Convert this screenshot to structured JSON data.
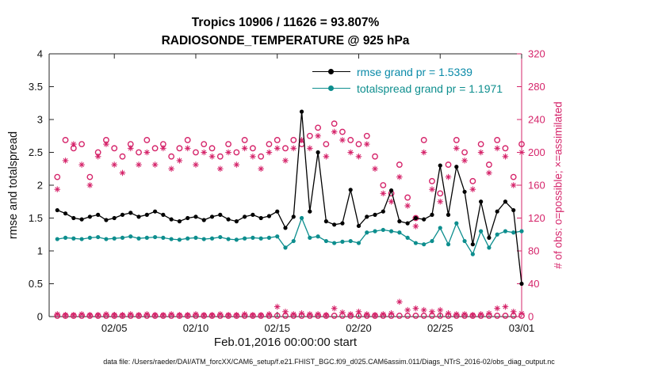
{
  "caption": "data file: /Users/raeder/DAI/ATM_forcXX/CAM6_setup/f.e21.FHIST_BGC.f09_d025.CAM6assim.011/Diags_NTrS_2016-02/obs_diag_output.nc",
  "colors": {
    "rmse": "#000000",
    "totalspread": "#0d8e8e",
    "obs": "#d5246a",
    "axis": "#262626",
    "legend_rmse_text": "#0a8aa8",
    "legend_totalspread_text": "#0d8e8e"
  },
  "chart_data": {
    "type": "line",
    "suptitle": "Tropics 10906 / 11626 = 93.807%",
    "title": "RADIOSONDE_TEMPERATURE @ 925 hPa",
    "xlabel": "Feb.01,2016 00:00:00 start",
    "ylabel_left": "rmse and totalspread",
    "ylabel_right": "# of obs: o=possible; ×=assimilated",
    "legend": {
      "rmse": "rmse grand pr = 1.5339",
      "totalspread": "totalspread grand pr = 1.1971"
    },
    "grid": false,
    "legend_position": "upper-center-inside",
    "x_axis": {
      "min": 0,
      "max": 29,
      "ticks": [
        4,
        9,
        14,
        19,
        24,
        29
      ],
      "tick_labels": [
        "02/05",
        "02/10",
        "02/15",
        "02/20",
        "02/25",
        "03/01"
      ]
    },
    "left_axis": {
      "min": 0,
      "max": 4,
      "ticks": [
        0,
        0.5,
        1,
        1.5,
        2,
        2.5,
        3,
        3.5,
        4
      ],
      "tick_labels": [
        "0",
        "0.5",
        "1",
        "1.5",
        "2",
        "2.5",
        "3",
        "3.5",
        "4"
      ]
    },
    "right_axis": {
      "min": 0,
      "max": 320,
      "ticks": [
        0,
        40,
        80,
        120,
        160,
        200,
        240,
        280,
        320
      ],
      "tick_labels": [
        "0",
        "40",
        "80",
        "120",
        "160",
        "200",
        "240",
        "280",
        "320"
      ]
    },
    "x_start": 0.5,
    "x_step": 0.5,
    "series": [
      {
        "name": "possible-obs",
        "axis": "right",
        "style": "circle",
        "color_key": "obs",
        "values": [
          170,
          215,
          205,
          210,
          170,
          200,
          215,
          205,
          195,
          210,
          200,
          215,
          205,
          210,
          195,
          205,
          215,
          200,
          210,
          205,
          195,
          210,
          200,
          215,
          205,
          195,
          210,
          215,
          205,
          215,
          210,
          220,
          230,
          210,
          235,
          225,
          215,
          210,
          220,
          195,
          160,
          150,
          185,
          145,
          120,
          215,
          165,
          150,
          185,
          215,
          200,
          165,
          210,
          185,
          215,
          205,
          170,
          210
        ]
      },
      {
        "name": "assimilated-obs",
        "axis": "right",
        "style": "asterisk",
        "color_key": "obs",
        "values": [
          155,
          190,
          210,
          185,
          160,
          195,
          210,
          185,
          175,
          205,
          185,
          200,
          185,
          205,
          180,
          190,
          205,
          185,
          200,
          195,
          180,
          200,
          185,
          205,
          195,
          180,
          200,
          205,
          190,
          205,
          215,
          205,
          220,
          195,
          225,
          215,
          200,
          195,
          210,
          180,
          150,
          140,
          170,
          135,
          110,
          200,
          155,
          140,
          170,
          205,
          190,
          155,
          200,
          175,
          205,
          195,
          160,
          200
        ]
      },
      {
        "name": "possible-near-zero",
        "axis": "right",
        "style": "circle",
        "color_key": "obs",
        "values": [
          1,
          1,
          1,
          1,
          1,
          1,
          1,
          1,
          1,
          1,
          1,
          1,
          1,
          1,
          1,
          1,
          1,
          1,
          1,
          1,
          1,
          1,
          1,
          1,
          1,
          1,
          1,
          1,
          1,
          1,
          1,
          1,
          1,
          1,
          1,
          1,
          1,
          1,
          1,
          1,
          1,
          1,
          1,
          1,
          1,
          1,
          1,
          1,
          1,
          1,
          1,
          1,
          1,
          1,
          1,
          1,
          1,
          1
        ]
      },
      {
        "name": "assimilated-near-zero",
        "axis": "right",
        "style": "asterisk",
        "color_key": "obs",
        "values": [
          3,
          2,
          2,
          3,
          2,
          2,
          3,
          2,
          2,
          3,
          2,
          3,
          2,
          2,
          3,
          2,
          2,
          3,
          2,
          2,
          3,
          2,
          2,
          3,
          2,
          2,
          3,
          12,
          6,
          3,
          4,
          3,
          3,
          2,
          10,
          5,
          3,
          6,
          3,
          2,
          3,
          4,
          18,
          8,
          10,
          8,
          6,
          8,
          4,
          3,
          3,
          2,
          3,
          4,
          10,
          12,
          6,
          4
        ]
      },
      {
        "name": "totalspread",
        "axis": "left",
        "style": "line-dot",
        "color_key": "totalspread",
        "values": [
          1.18,
          1.2,
          1.19,
          1.18,
          1.2,
          1.21,
          1.18,
          1.19,
          1.2,
          1.22,
          1.19,
          1.2,
          1.21,
          1.2,
          1.18,
          1.17,
          1.19,
          1.2,
          1.18,
          1.19,
          1.21,
          1.18,
          1.17,
          1.19,
          1.2,
          1.19,
          1.2,
          1.22,
          1.05,
          1.15,
          1.5,
          1.2,
          1.22,
          1.15,
          1.12,
          1.14,
          1.15,
          1.12,
          1.28,
          1.3,
          1.32,
          1.3,
          1.28,
          1.2,
          1.12,
          1.1,
          1.15,
          1.35,
          1.1,
          1.42,
          1.15,
          0.95,
          1.3,
          1.05,
          1.25,
          1.3,
          1.28,
          1.3
        ]
      },
      {
        "name": "rmse",
        "axis": "left",
        "style": "line-dot",
        "color_key": "rmse",
        "values": [
          1.62,
          1.57,
          1.5,
          1.48,
          1.52,
          1.55,
          1.47,
          1.5,
          1.55,
          1.58,
          1.52,
          1.55,
          1.6,
          1.55,
          1.48,
          1.45,
          1.5,
          1.52,
          1.47,
          1.52,
          1.55,
          1.48,
          1.45,
          1.52,
          1.55,
          1.5,
          1.53,
          1.6,
          1.35,
          1.52,
          3.12,
          1.6,
          2.5,
          1.45,
          1.4,
          1.42,
          1.93,
          1.38,
          1.52,
          1.55,
          1.6,
          1.92,
          1.45,
          1.42,
          1.5,
          1.48,
          1.55,
          2.3,
          1.55,
          2.28,
          1.9,
          1.1,
          1.75,
          1.2,
          1.6,
          1.75,
          1.62,
          0.5
        ]
      }
    ]
  }
}
